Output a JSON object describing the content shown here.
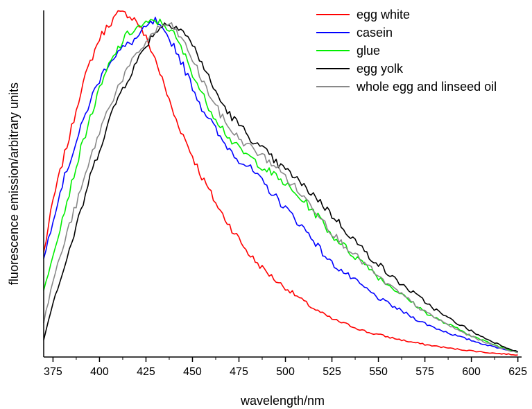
{
  "chart_data": {
    "type": "line",
    "title": "",
    "xlabel": "wavelength/nm",
    "ylabel": "fluorescence emission/arbitrary units",
    "xlim": [
      370,
      627
    ],
    "ylim": [
      0,
      1.0
    ],
    "yticks_shown": false,
    "xticks": [
      375,
      400,
      425,
      450,
      475,
      500,
      525,
      550,
      575,
      600,
      625
    ],
    "legend_position": "top-right",
    "x": [
      370,
      375,
      380,
      385,
      390,
      395,
      400,
      405,
      410,
      415,
      420,
      425,
      430,
      435,
      440,
      445,
      450,
      455,
      460,
      465,
      470,
      475,
      480,
      485,
      490,
      495,
      500,
      505,
      510,
      515,
      520,
      525,
      530,
      535,
      540,
      545,
      550,
      555,
      560,
      565,
      570,
      575,
      580,
      585,
      590,
      595,
      600,
      605,
      610,
      615,
      620,
      625
    ],
    "series": [
      {
        "name": "egg white",
        "color": "#ff0000",
        "values": [
          0.3,
          0.45,
          0.56,
          0.66,
          0.77,
          0.85,
          0.92,
          0.96,
          0.99,
          0.99,
          0.97,
          0.92,
          0.86,
          0.78,
          0.7,
          0.64,
          0.58,
          0.52,
          0.47,
          0.42,
          0.38,
          0.34,
          0.3,
          0.27,
          0.245,
          0.22,
          0.2,
          0.18,
          0.16,
          0.14,
          0.125,
          0.11,
          0.1,
          0.09,
          0.08,
          0.07,
          0.065,
          0.058,
          0.052,
          0.046,
          0.041,
          0.036,
          0.032,
          0.028,
          0.024,
          0.021,
          0.018,
          0.015,
          0.012,
          0.01,
          0.008,
          0.006
        ]
      },
      {
        "name": "casein",
        "color": "#0000ff",
        "values": [
          0.28,
          0.4,
          0.5,
          0.58,
          0.66,
          0.74,
          0.8,
          0.85,
          0.88,
          0.9,
          0.92,
          0.95,
          0.97,
          0.93,
          0.9,
          0.84,
          0.78,
          0.72,
          0.68,
          0.63,
          0.6,
          0.57,
          0.55,
          0.52,
          0.49,
          0.46,
          0.43,
          0.4,
          0.37,
          0.34,
          0.3,
          0.27,
          0.25,
          0.23,
          0.21,
          0.19,
          0.17,
          0.155,
          0.14,
          0.125,
          0.11,
          0.097,
          0.085,
          0.075,
          0.065,
          0.056,
          0.048,
          0.04,
          0.032,
          0.026,
          0.02,
          0.014
        ]
      },
      {
        "name": "glue",
        "color": "#00ee00",
        "values": [
          0.19,
          0.3,
          0.4,
          0.5,
          0.6,
          0.69,
          0.77,
          0.84,
          0.89,
          0.93,
          0.95,
          0.96,
          0.97,
          0.96,
          0.93,
          0.88,
          0.82,
          0.76,
          0.71,
          0.67,
          0.63,
          0.6,
          0.58,
          0.56,
          0.54,
          0.52,
          0.5,
          0.47,
          0.45,
          0.42,
          0.39,
          0.35,
          0.33,
          0.3,
          0.28,
          0.26,
          0.23,
          0.21,
          0.19,
          0.17,
          0.15,
          0.13,
          0.115,
          0.1,
          0.088,
          0.075,
          0.062,
          0.05,
          0.04,
          0.03,
          0.022,
          0.014
        ]
      },
      {
        "name": "egg yolk",
        "color": "#000000",
        "values": [
          0.05,
          0.16,
          0.24,
          0.33,
          0.42,
          0.52,
          0.6,
          0.68,
          0.75,
          0.8,
          0.85,
          0.9,
          0.94,
          0.96,
          0.96,
          0.94,
          0.9,
          0.85,
          0.79,
          0.74,
          0.7,
          0.67,
          0.64,
          0.61,
          0.59,
          0.56,
          0.54,
          0.52,
          0.49,
          0.47,
          0.44,
          0.41,
          0.38,
          0.35,
          0.32,
          0.29,
          0.27,
          0.24,
          0.22,
          0.2,
          0.18,
          0.16,
          0.14,
          0.12,
          0.105,
          0.09,
          0.075,
          0.06,
          0.048,
          0.036,
          0.025,
          0.015
        ]
      },
      {
        "name": "whole egg and linseed oil",
        "color": "#888888",
        "values": [
          0.1,
          0.22,
          0.31,
          0.4,
          0.48,
          0.57,
          0.65,
          0.72,
          0.78,
          0.83,
          0.87,
          0.91,
          0.94,
          0.96,
          0.95,
          0.91,
          0.86,
          0.8,
          0.75,
          0.7,
          0.66,
          0.63,
          0.61,
          0.59,
          0.57,
          0.55,
          0.52,
          0.49,
          0.46,
          0.43,
          0.4,
          0.36,
          0.33,
          0.31,
          0.28,
          0.26,
          0.23,
          0.21,
          0.19,
          0.17,
          0.15,
          0.13,
          0.115,
          0.1,
          0.085,
          0.072,
          0.06,
          0.048,
          0.038,
          0.028,
          0.02,
          0.012
        ]
      }
    ]
  }
}
